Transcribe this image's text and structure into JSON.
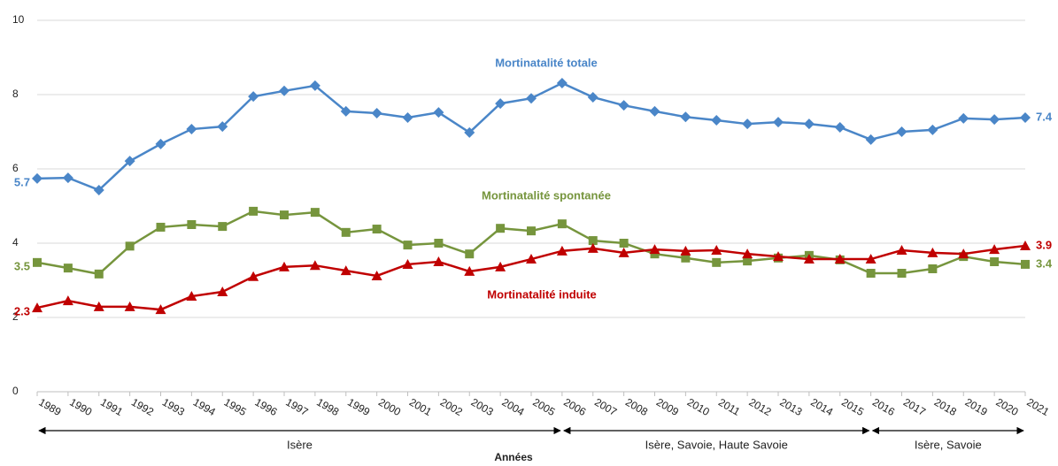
{
  "chart_data": {
    "type": "line",
    "x_label": "Années",
    "categories": [
      "1989",
      "1990",
      "1991",
      "1992",
      "1993",
      "1994",
      "1995",
      "1996",
      "1997",
      "1998",
      "1999",
      "2000",
      "2001",
      "2002",
      "2003",
      "2004",
      "2005",
      "2006",
      "2007",
      "2008",
      "2009",
      "2010",
      "2011",
      "2012",
      "2013",
      "2014",
      "2015",
      "2016",
      "2017",
      "2018",
      "2019",
      "2020",
      "2021"
    ],
    "series": [
      {
        "name": "Mortinatalité totale",
        "color": "#4a86c8",
        "marker": "diamond",
        "values": [
          5.74,
          5.76,
          5.43,
          6.21,
          6.67,
          7.07,
          7.14,
          7.95,
          8.1,
          8.24,
          7.55,
          7.5,
          7.38,
          7.52,
          6.98,
          7.76,
          7.9,
          8.31,
          7.93,
          7.71,
          7.55,
          7.4,
          7.31,
          7.21,
          7.26,
          7.21,
          7.12,
          6.79,
          7.0,
          7.05,
          7.36,
          7.33,
          7.38
        ],
        "value_labels": [
          "5.7",
          null,
          null,
          null,
          null,
          null,
          null,
          null,
          null,
          null,
          null,
          null,
          null,
          null,
          null,
          null,
          null,
          null,
          null,
          null,
          null,
          null,
          null,
          null,
          null,
          null,
          null,
          null,
          null,
          null,
          null,
          null,
          "7.4"
        ]
      },
      {
        "name": "Mortinatalité spontanée",
        "color": "#76953d",
        "marker": "square",
        "values": [
          3.48,
          3.33,
          3.17,
          3.92,
          4.43,
          4.5,
          4.45,
          4.86,
          4.76,
          4.83,
          4.29,
          4.38,
          3.95,
          4.0,
          3.71,
          4.4,
          4.33,
          4.52,
          4.07,
          4.0,
          3.71,
          3.6,
          3.48,
          3.52,
          3.6,
          3.67,
          3.55,
          3.19,
          3.19,
          3.31,
          3.64,
          3.5,
          3.43
        ],
        "value_labels": [
          "3.5",
          null,
          null,
          null,
          null,
          null,
          null,
          null,
          null,
          null,
          null,
          null,
          null,
          null,
          null,
          null,
          null,
          null,
          null,
          null,
          null,
          null,
          null,
          null,
          null,
          null,
          null,
          null,
          null,
          null,
          null,
          null,
          "3.4"
        ]
      },
      {
        "name": "Mortinatalité induite",
        "color": "#c00000",
        "marker": "triangle",
        "values": [
          2.26,
          2.45,
          2.29,
          2.29,
          2.21,
          2.57,
          2.69,
          3.1,
          3.36,
          3.4,
          3.26,
          3.12,
          3.43,
          3.5,
          3.24,
          3.36,
          3.57,
          3.79,
          3.86,
          3.74,
          3.83,
          3.79,
          3.81,
          3.71,
          3.64,
          3.57,
          3.57,
          3.57,
          3.81,
          3.74,
          3.71,
          3.83,
          3.93
        ],
        "value_labels": [
          "2.3",
          null,
          null,
          null,
          null,
          null,
          null,
          null,
          null,
          null,
          null,
          null,
          null,
          null,
          null,
          null,
          null,
          null,
          null,
          null,
          null,
          null,
          null,
          null,
          null,
          null,
          null,
          null,
          null,
          null,
          null,
          null,
          "3.9"
        ]
      }
    ],
    "ylim": [
      0,
      10
    ],
    "yticks": [
      0,
      2,
      4,
      6,
      8,
      10
    ],
    "grid": true,
    "periods": [
      {
        "label": "Isère",
        "from": "1989",
        "to": "2006"
      },
      {
        "label": "Isère, Savoie, Haute Savoie",
        "from": "2006",
        "to": "2016"
      },
      {
        "label": "Isère, Savoie",
        "from": "2016",
        "to": "2021"
      }
    ]
  }
}
